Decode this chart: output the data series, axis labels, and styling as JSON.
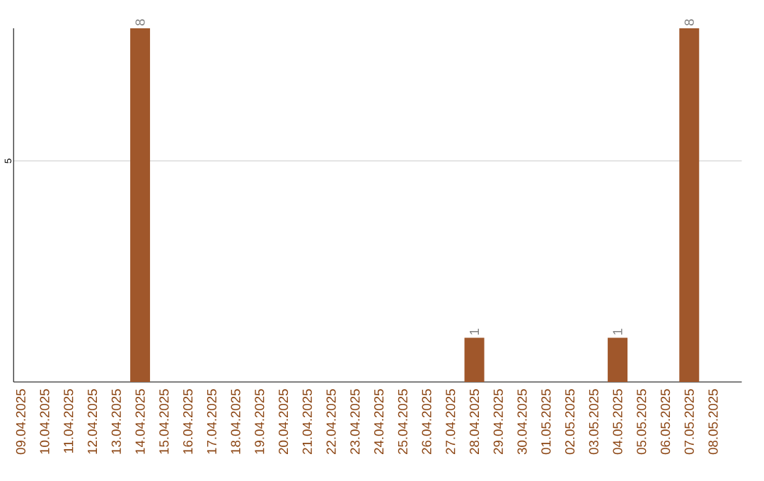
{
  "chart_data": {
    "type": "bar",
    "categories": [
      "09.04.2025",
      "10.04.2025",
      "11.04.2025",
      "12.04.2025",
      "13.04.2025",
      "14.04.2025",
      "15.04.2025",
      "16.04.2025",
      "17.04.2025",
      "18.04.2025",
      "19.04.2025",
      "20.04.2025",
      "21.04.2025",
      "22.04.2025",
      "23.04.2025",
      "24.04.2025",
      "25.04.2025",
      "26.04.2025",
      "27.04.2025",
      "28.04.2025",
      "29.04.2025",
      "30.04.2025",
      "01.05.2025",
      "02.05.2025",
      "03.05.2025",
      "04.05.2025",
      "05.05.2025",
      "06.05.2025",
      "07.05.2025",
      "08.05.2025"
    ],
    "values": [
      0,
      0,
      0,
      0,
      0,
      8,
      0,
      0,
      0,
      0,
      0,
      0,
      0,
      0,
      0,
      0,
      0,
      0,
      0,
      1,
      0,
      0,
      0,
      0,
      0,
      1,
      0,
      0,
      8,
      0
    ],
    "value_labels": [
      null,
      null,
      null,
      null,
      null,
      "8",
      null,
      null,
      null,
      null,
      null,
      null,
      null,
      null,
      null,
      null,
      null,
      null,
      null,
      "1",
      null,
      null,
      null,
      null,
      null,
      "1",
      null,
      null,
      "8",
      null
    ],
    "color": "#a0572b",
    "ylim": [
      0,
      8
    ],
    "yticks": [
      5
    ],
    "grid": "y"
  }
}
